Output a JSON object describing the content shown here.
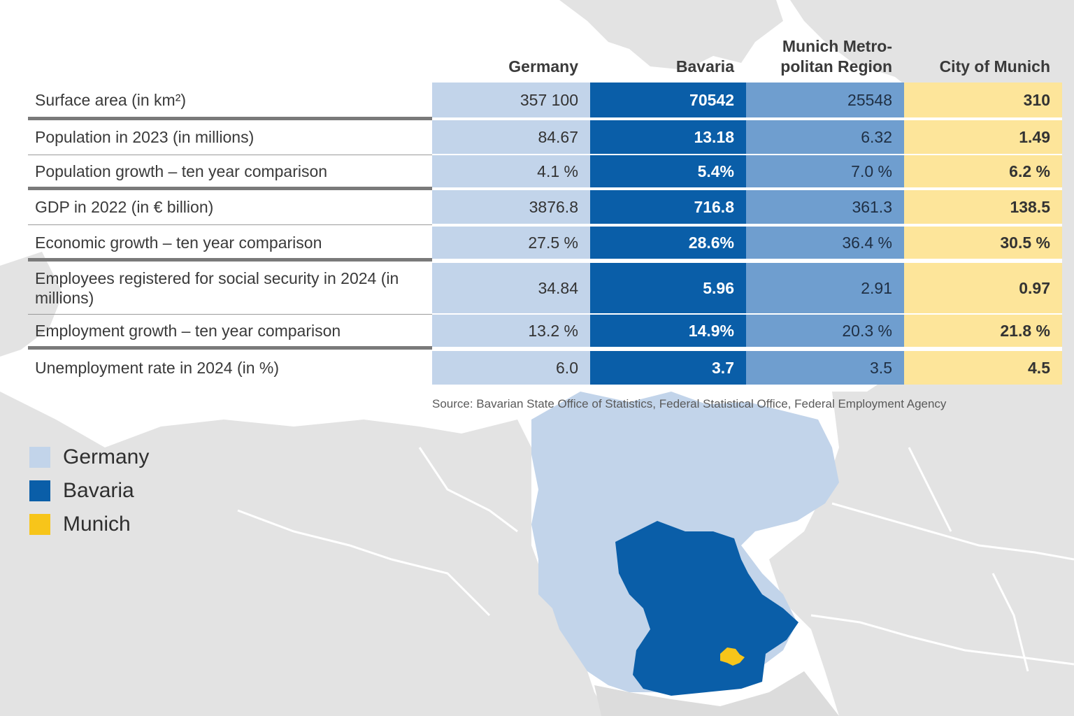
{
  "chart_data": {
    "type": "table",
    "columns": [
      "Germany",
      "Bavaria",
      "Munich Metro-politan Region",
      "City of Munich"
    ],
    "rows": [
      {
        "label": "Surface area (in km²)",
        "values": [
          "357 100",
          "70542",
          "25548",
          "310"
        ]
      },
      {
        "label": "Population in 2023 (in millions)",
        "values": [
          "84.67",
          "13.18",
          "6.32",
          "1.49"
        ]
      },
      {
        "label": "Population growth – ten year comparison",
        "values": [
          "4.1 %",
          "5.4%",
          "7.0 %",
          "6.2 %"
        ]
      },
      {
        "label": "GDP in 2022 (in € billion)",
        "values": [
          "3876.8",
          "716.8",
          "361.3",
          "138.5"
        ]
      },
      {
        "label": "Economic growth – ten year comparison",
        "values": [
          "27.5 %",
          "28.6%",
          "36.4 %",
          "30.5 %"
        ]
      },
      {
        "label": "Employees registered for social security in 2024 (in millions)",
        "values": [
          "34.84",
          "5.96",
          "2.91",
          "0.97"
        ]
      },
      {
        "label": "Employment growth – ten year comparison",
        "values": [
          "13.2 %",
          "14.9%",
          "20.3 %",
          "21.8 %"
        ]
      },
      {
        "label": "Unemployment rate in 2024 (in %)",
        "values": [
          "6.0",
          "3.7",
          "3.5",
          "4.5"
        ]
      }
    ],
    "source": "Source: Bavarian State Office of Statistics, Federal Statistical Office, Federal Employment Agency"
  },
  "legend": [
    {
      "label": "Germany",
      "color": "#c2d4ea"
    },
    {
      "label": "Bavaria",
      "color": "#0a5ea8"
    },
    {
      "label": "Munich",
      "color": "#f7c51a"
    }
  ],
  "colors": {
    "germany": "#c2d4ea",
    "bavaria": "#0a5ea8",
    "metro_region": "#6f9ecf",
    "city": "#fde59a",
    "munich_map": "#f7c51a",
    "land": "#e3e3e3"
  }
}
